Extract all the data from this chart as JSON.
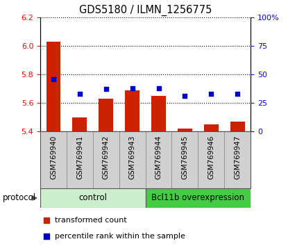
{
  "title": "GDS5180 / ILMN_1256775",
  "samples": [
    "GSM769940",
    "GSM769941",
    "GSM769942",
    "GSM769943",
    "GSM769944",
    "GSM769945",
    "GSM769946",
    "GSM769947"
  ],
  "transformed_count": [
    6.03,
    5.5,
    5.63,
    5.69,
    5.65,
    5.42,
    5.45,
    5.47
  ],
  "percentile_rank": [
    46,
    33,
    37,
    38,
    38,
    31,
    33,
    33
  ],
  "ylim_left": [
    5.4,
    6.2
  ],
  "ylim_right": [
    0,
    100
  ],
  "yticks_left": [
    5.4,
    5.6,
    5.8,
    6.0,
    6.2
  ],
  "yticks_right": [
    0,
    25,
    50,
    75,
    100
  ],
  "ytick_labels_right": [
    "0",
    "25",
    "50",
    "75",
    "100%"
  ],
  "bar_color": "#cc2200",
  "dot_color": "#0000cc",
  "bar_width": 0.55,
  "grid_color": "black",
  "label_bg": "#d0d0d0",
  "label_border": "#888888",
  "ctrl_color_light": "#cceecc",
  "ctrl_color_dark": "#44cc44",
  "protocol_label": "protocol",
  "legend_tc": "transformed count",
  "legend_pr": "percentile rank within the sample",
  "ctrl_label": "control",
  "bcl_label": "Bcl11b overexpression"
}
